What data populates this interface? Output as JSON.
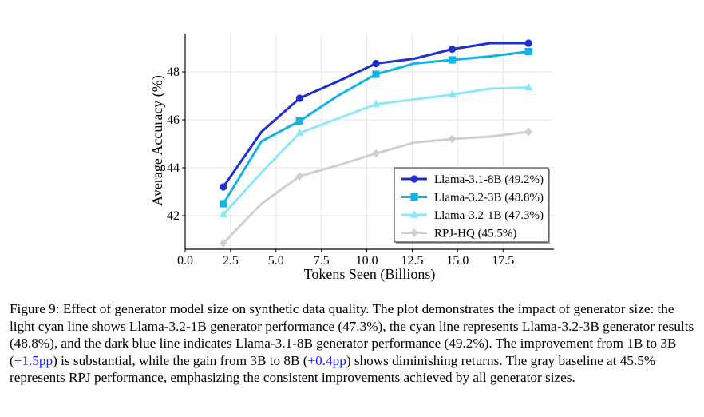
{
  "chart_data": {
    "type": "line",
    "title": "",
    "xlabel": "Tokens Seen (Billions)",
    "ylabel": "Average Accuracy (%)",
    "xlim": [
      0,
      20.3
    ],
    "ylim": [
      40.6,
      49.6
    ],
    "xticks": [
      0.0,
      2.5,
      5.0,
      7.5,
      10.0,
      12.5,
      15.0,
      17.5
    ],
    "xtick_labels": [
      "0.0",
      "2.5",
      "5.0",
      "7.5",
      "10.0",
      "12.5",
      "15.0",
      "17.5"
    ],
    "yticks": [
      42,
      44,
      46,
      48
    ],
    "ytick_labels": [
      "42",
      "44",
      "46",
      "48"
    ],
    "grid": true,
    "legend_position": "lower-right",
    "series": [
      {
        "name": "Llama-3.1-8B (49.2%)",
        "color": "#1f2fd0",
        "marker": "circle",
        "x": [
          2.1,
          4.2,
          6.3,
          8.4,
          10.5,
          12.6,
          14.7,
          16.8,
          18.9
        ],
        "y": [
          43.2,
          45.5,
          46.9,
          47.6,
          48.35,
          48.55,
          48.95,
          49.2,
          49.2
        ],
        "marker_x": [
          2.1,
          6.3,
          10.5,
          14.7,
          18.9
        ],
        "marker_y": [
          43.2,
          46.9,
          48.35,
          48.95,
          49.2
        ]
      },
      {
        "name": "Llama-3.2-3B (48.8%)",
        "color": "#12b4e6",
        "marker": "square",
        "x": [
          2.1,
          4.2,
          6.3,
          8.4,
          10.5,
          12.6,
          14.7,
          16.8,
          18.9
        ],
        "y": [
          42.5,
          45.1,
          45.95,
          47.0,
          47.9,
          48.35,
          48.5,
          48.65,
          48.85
        ],
        "marker_x": [
          2.1,
          6.3,
          10.5,
          14.7,
          18.9
        ],
        "marker_y": [
          42.5,
          45.95,
          47.9,
          48.5,
          48.85
        ]
      },
      {
        "name": "Llama-3.2-1B (47.3%)",
        "color": "#8be8f8",
        "marker": "triangle",
        "x": [
          2.1,
          4.2,
          6.3,
          8.4,
          10.5,
          12.6,
          14.7,
          16.8,
          18.9
        ],
        "y": [
          42.05,
          43.8,
          45.45,
          46.05,
          46.65,
          46.85,
          47.05,
          47.3,
          47.35
        ],
        "marker_x": [
          2.1,
          6.3,
          10.5,
          14.7,
          18.9
        ],
        "marker_y": [
          42.05,
          45.45,
          46.65,
          47.05,
          47.35
        ]
      },
      {
        "name": "RPJ-HQ (45.5%)",
        "color": "#cfcfcf",
        "marker": "diamond",
        "x": [
          2.1,
          4.2,
          6.3,
          8.4,
          10.5,
          12.6,
          14.7,
          16.8,
          18.9
        ],
        "y": [
          40.85,
          42.5,
          43.65,
          44.1,
          44.6,
          45.05,
          45.2,
          45.3,
          45.5
        ],
        "marker_x": [
          2.1,
          6.3,
          10.5,
          14.7,
          18.9
        ],
        "marker_y": [
          40.85,
          43.65,
          44.6,
          45.2,
          45.5
        ]
      }
    ]
  },
  "caption": {
    "part1": "Figure 9: Effect of generator model size on synthetic data quality. The plot demonstrates the impact of generator size: the light cyan line shows Llama-3.2-1B generator performance (47.3%), the cyan line represents Llama-3.2-3B generator results (48.8%), and the dark blue line indicates Llama-3.1-8B generator performance (49.2%). The improvement from 1B to 3B (",
    "hl1": "+1.5pp",
    "part2": ") is substantial, while the gain from 3B to 8B (",
    "hl2": "+0.4pp",
    "part3": ") shows diminishing returns. The gray baseline at 45.5% represents RPJ performance, emphasizing the consistent improvements achieved by all generator sizes."
  }
}
